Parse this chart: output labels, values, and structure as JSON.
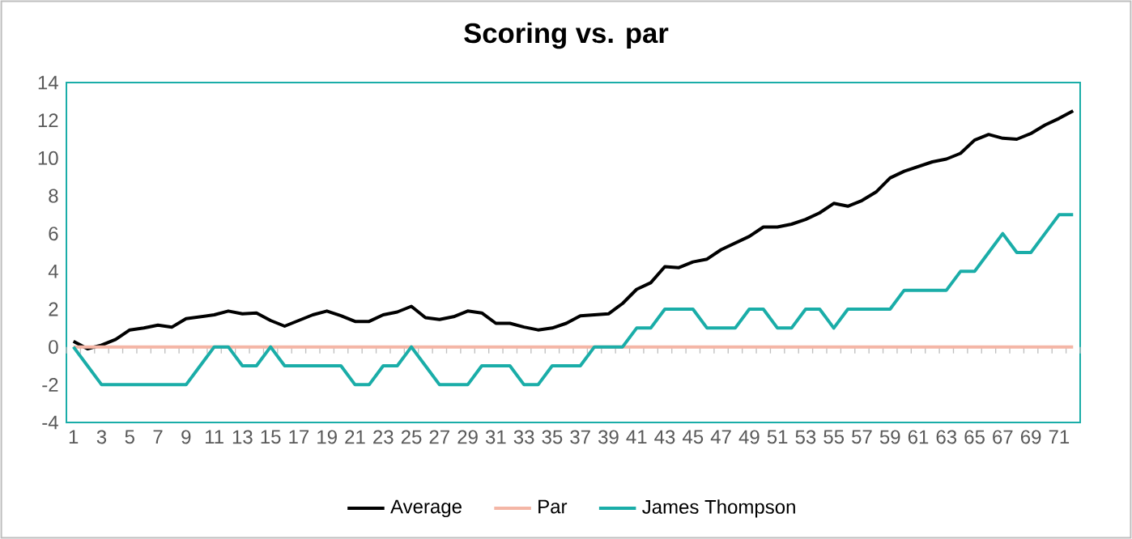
{
  "chart_data": {
    "type": "line",
    "title": "Scoring vs. par",
    "categories": [
      "1",
      null,
      "3",
      null,
      "5",
      null,
      "7",
      null,
      "9",
      null,
      "11",
      null,
      "13",
      null,
      "15",
      null,
      "17",
      null,
      "19",
      null,
      "21",
      null,
      "23",
      null,
      "25",
      null,
      "27",
      null,
      "29",
      null,
      "31",
      null,
      "33",
      null,
      "35",
      null,
      "37",
      null,
      "39",
      null,
      "41",
      null,
      "43",
      null,
      "45",
      null,
      "47",
      null,
      "49",
      null,
      "51",
      null,
      "53",
      null,
      "55",
      null,
      "57",
      null,
      "59",
      null,
      "61",
      null,
      "63",
      null,
      "65",
      null,
      "67",
      null,
      "69",
      null,
      "71",
      null
    ],
    "series": [
      {
        "name": "Average",
        "color": "#000000",
        "values": [
          0.3,
          -0.1,
          0.1,
          0.4,
          0.9,
          1.0,
          1.15,
          1.05,
          1.5,
          1.6,
          1.7,
          1.9,
          1.75,
          1.8,
          1.4,
          1.1,
          1.4,
          1.7,
          1.9,
          1.65,
          1.35,
          1.35,
          1.7,
          1.85,
          2.15,
          1.55,
          1.45,
          1.6,
          1.9,
          1.8,
          1.25,
          1.25,
          1.05,
          0.9,
          1.0,
          1.25,
          1.65,
          1.7,
          1.75,
          2.3,
          3.05,
          3.4,
          4.25,
          4.2,
          4.5,
          4.65,
          5.15,
          5.5,
          5.85,
          6.35,
          6.35,
          6.5,
          6.75,
          7.1,
          7.6,
          7.45,
          7.75,
          8.2,
          8.95,
          9.3,
          9.55,
          9.8,
          9.95,
          10.25,
          10.95,
          11.25,
          11.05,
          11.0,
          11.3,
          11.75,
          12.1,
          12.5
        ]
      },
      {
        "name": "Par",
        "color": "#f4b6a6",
        "values": [
          0,
          0,
          0,
          0,
          0,
          0,
          0,
          0,
          0,
          0,
          0,
          0,
          0,
          0,
          0,
          0,
          0,
          0,
          0,
          0,
          0,
          0,
          0,
          0,
          0,
          0,
          0,
          0,
          0,
          0,
          0,
          0,
          0,
          0,
          0,
          0,
          0,
          0,
          0,
          0,
          0,
          0,
          0,
          0,
          0,
          0,
          0,
          0,
          0,
          0,
          0,
          0,
          0,
          0,
          0,
          0,
          0,
          0,
          0,
          0,
          0,
          0,
          0,
          0,
          0,
          0,
          0,
          0,
          0,
          0,
          0,
          0
        ]
      },
      {
        "name": "James Thompson",
        "color": "#1aada8",
        "values": [
          0,
          -1,
          -2,
          -2,
          -2,
          -2,
          -2,
          -2,
          -2,
          -1,
          0,
          0,
          -1,
          -1,
          0,
          -1,
          -1,
          -1,
          -1,
          -1,
          -2,
          -2,
          -1,
          -1,
          0,
          -1,
          -2,
          -2,
          -2,
          -1,
          -1,
          -1,
          -2,
          -2,
          -1,
          -1,
          -1,
          0,
          0,
          0,
          1,
          1,
          2,
          2,
          2,
          1,
          1,
          1,
          2,
          2,
          1,
          1,
          2,
          2,
          1,
          2,
          2,
          2,
          2,
          3,
          3,
          3,
          3,
          4,
          4,
          5,
          6,
          5,
          5,
          6,
          7,
          7
        ]
      }
    ],
    "ylim": [
      -4,
      14
    ],
    "yticks": [
      -4,
      -2,
      0,
      2,
      4,
      6,
      8,
      10,
      12,
      14
    ],
    "legend": "bottom"
  }
}
